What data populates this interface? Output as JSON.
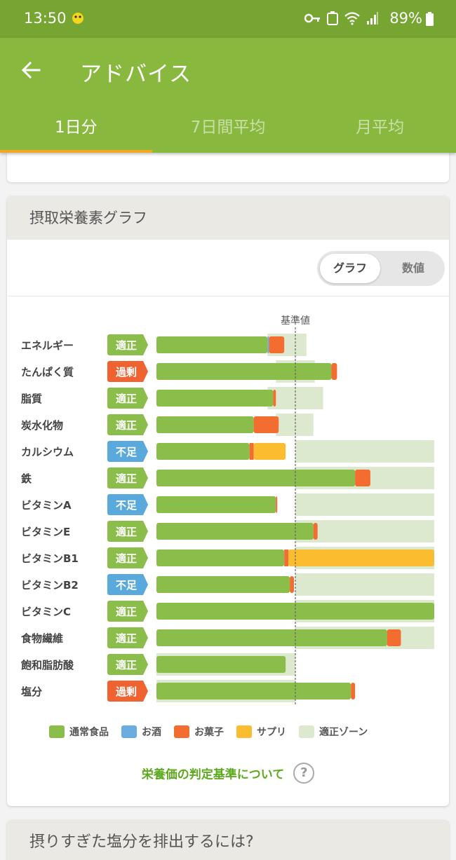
{
  "status_bar": {
    "time": "13:50",
    "battery": "89%",
    "icons": [
      "notification-icon",
      "key-icon",
      "recycle-icon",
      "wifi-icon",
      "signal-icon",
      "battery-icon"
    ]
  },
  "appbar": {
    "title": "アドバイス",
    "tabs": [
      {
        "label": "1日分",
        "active": true
      },
      {
        "label": "7日間平均",
        "active": false
      },
      {
        "label": "月平均",
        "active": false
      }
    ]
  },
  "nutrient_card": {
    "title": "摂取栄養素グラフ",
    "toggle": {
      "graph": "グラフ",
      "numeric": "数値",
      "selected": "graph"
    },
    "reference_label": "基準値",
    "criteria_link": "栄養価の判定基準について",
    "help_icon": "?"
  },
  "colors": {
    "normal": "#8bbd4b",
    "alcohol": "#6aade0",
    "sweets": "#f36c30",
    "supplement": "#fbbd2f",
    "zone": "#dde9cf",
    "badge_ok": "#8bbd4b",
    "badge_low": "#5aa9dc",
    "badge_high": "#ef6231"
  },
  "chart_data": {
    "type": "bar",
    "stacked": true,
    "orientation": "horizontal",
    "reference_value": 100,
    "x_unit": "percent of reference",
    "xlim": [
      0,
      200
    ],
    "legend_position": "bottom",
    "series": [
      {
        "name": "通常食品",
        "key": "normal"
      },
      {
        "name": "お酒",
        "key": "alcohol"
      },
      {
        "name": "お菓子",
        "key": "sweets"
      },
      {
        "name": "サプリ",
        "key": "supplement"
      },
      {
        "name": "適正ゾーン",
        "key": "zone"
      }
    ],
    "items": [
      {
        "name": "エネルギー",
        "status": "適正",
        "status_key": "ok",
        "zone": [
          80,
          108
        ],
        "normal": 80,
        "alcohol": 1,
        "sweets": 11,
        "supplement": 0
      },
      {
        "name": "たんぱく質",
        "status": "過剰",
        "status_key": "high",
        "zone": [
          86,
          114
        ],
        "normal": 126,
        "alcohol": 0,
        "sweets": 4,
        "supplement": 0
      },
      {
        "name": "脂質",
        "status": "適正",
        "status_key": "ok",
        "zone": [
          80,
          120
        ],
        "normal": 84,
        "alcohol": 0,
        "sweets": 2,
        "supplement": 0
      },
      {
        "name": "炭水化物",
        "status": "適正",
        "status_key": "ok",
        "zone": [
          86,
          113
        ],
        "normal": 70,
        "alcohol": 0,
        "sweets": 18,
        "supplement": 0
      },
      {
        "name": "カルシウム",
        "status": "不足",
        "status_key": "low",
        "zone": [
          100,
          200
        ],
        "normal": 67,
        "alcohol": 0,
        "sweets": 3,
        "supplement": 23
      },
      {
        "name": "鉄",
        "status": "適正",
        "status_key": "ok",
        "zone": [
          100,
          200
        ],
        "normal": 143,
        "alcohol": 0,
        "sweets": 11,
        "supplement": 0
      },
      {
        "name": "ビタミンA",
        "status": "不足",
        "status_key": "low",
        "zone": [
          100,
          200
        ],
        "normal": 86,
        "alcohol": 0,
        "sweets": 1,
        "supplement": 0
      },
      {
        "name": "ビタミンE",
        "status": "適正",
        "status_key": "ok",
        "zone": [
          100,
          200
        ],
        "normal": 113,
        "alcohol": 0,
        "sweets": 3,
        "supplement": 0
      },
      {
        "name": "ビタミンB1",
        "status": "適正",
        "status_key": "ok",
        "zone": [
          100,
          200
        ],
        "normal": 92,
        "alcohol": 0,
        "sweets": 3,
        "supplement": 105
      },
      {
        "name": "ビタミンB2",
        "status": "不足",
        "status_key": "low",
        "zone": [
          100,
          200
        ],
        "normal": 96,
        "alcohol": 0,
        "sweets": 3,
        "supplement": 0
      },
      {
        "name": "ビタミンC",
        "status": "適正",
        "status_key": "ok",
        "zone": [
          100,
          200
        ],
        "normal": 200,
        "alcohol": 0,
        "sweets": 0,
        "supplement": 0
      },
      {
        "name": "食物繊維",
        "status": "適正",
        "status_key": "ok",
        "zone": [
          100,
          200
        ],
        "normal": 166,
        "alcohol": 0,
        "sweets": 10,
        "supplement": 0
      },
      {
        "name": "飽和脂肪酸",
        "status": "適正",
        "status_key": "ok",
        "zone": [
          0,
          100
        ],
        "normal": 93,
        "alcohol": 0,
        "sweets": 0,
        "supplement": 0
      },
      {
        "name": "塩分",
        "status": "過剰",
        "status_key": "high",
        "zone": [
          0,
          100
        ],
        "normal": 140,
        "alcohol": 0,
        "sweets": 3,
        "supplement": 0
      }
    ]
  },
  "next_card": {
    "title": "摂りすぎた塩分を排出するには?"
  }
}
